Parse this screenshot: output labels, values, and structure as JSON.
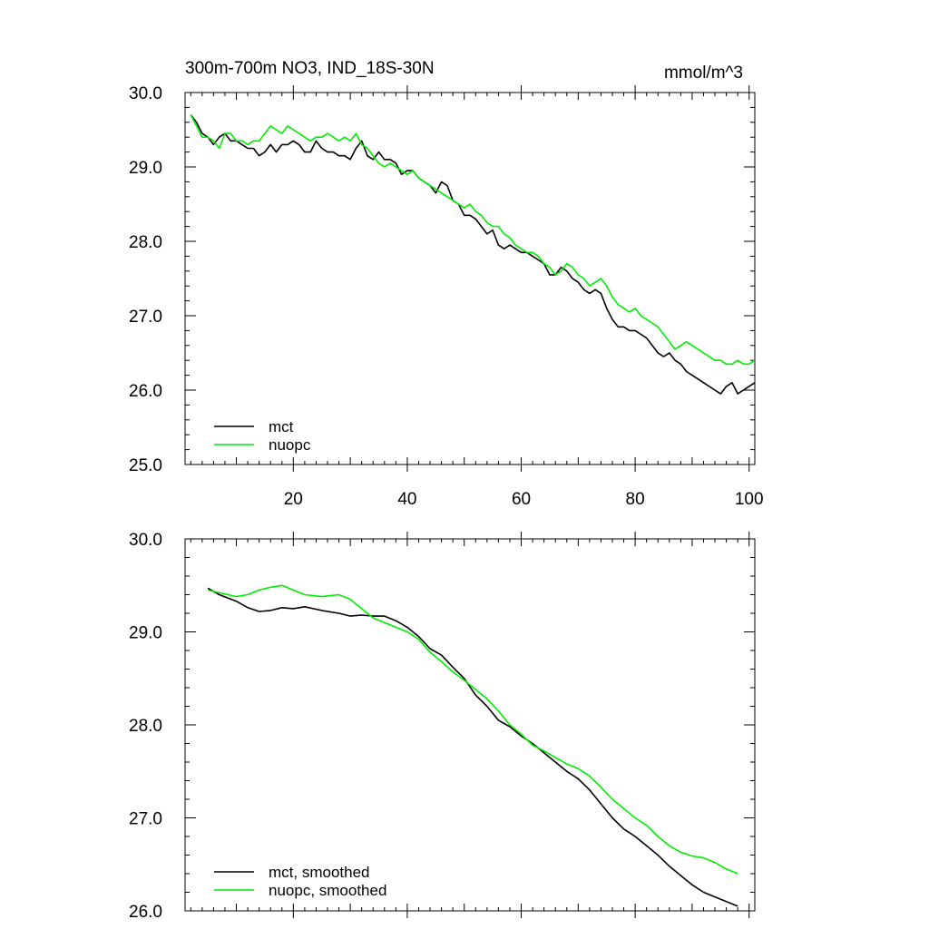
{
  "chart_data": [
    {
      "type": "line",
      "title": "300m-700m NO3, IND_18S-30N",
      "units": "mmol/m^3",
      "xlabel": "",
      "ylabel": "",
      "xlim": [
        1,
        101
      ],
      "ylim": [
        25.0,
        30.0
      ],
      "xticks": [
        20,
        40,
        60,
        80,
        100
      ],
      "yticks": [
        "25.0",
        "26.0",
        "27.0",
        "28.0",
        "29.0",
        "30.0"
      ],
      "legend_position": "bottom-left",
      "series": [
        {
          "name": "mct",
          "color": "#000000",
          "x_start": 2,
          "values": [
            29.7,
            29.6,
            29.45,
            29.4,
            29.3,
            29.4,
            29.45,
            29.35,
            29.35,
            29.3,
            29.25,
            29.25,
            29.15,
            29.2,
            29.3,
            29.2,
            29.3,
            29.3,
            29.35,
            29.3,
            29.2,
            29.2,
            29.35,
            29.25,
            29.2,
            29.2,
            29.15,
            29.15,
            29.1,
            29.25,
            29.35,
            29.15,
            29.1,
            29.2,
            29.1,
            29.1,
            29.05,
            28.9,
            28.95,
            28.95,
            28.85,
            28.8,
            28.75,
            28.65,
            28.8,
            28.75,
            28.55,
            28.5,
            28.35,
            28.35,
            28.3,
            28.2,
            28.1,
            28.15,
            27.95,
            27.9,
            27.95,
            27.9,
            27.85,
            27.85,
            27.8,
            27.75,
            27.7,
            27.55,
            27.55,
            27.65,
            27.6,
            27.5,
            27.45,
            27.35,
            27.3,
            27.35,
            27.3,
            27.1,
            26.95,
            26.85,
            26.85,
            26.8,
            26.8,
            26.75,
            26.7,
            26.6,
            26.5,
            26.45,
            26.5,
            26.4,
            26.35,
            26.25,
            26.2,
            26.15,
            26.1,
            26.05,
            26.0,
            25.95,
            26.05,
            26.1,
            25.95,
            26.0,
            26.05,
            26.1
          ]
        },
        {
          "name": "nuopc",
          "color": "#00ee00",
          "x_start": 2,
          "values": [
            29.7,
            29.55,
            29.4,
            29.4,
            29.35,
            29.25,
            29.45,
            29.45,
            29.35,
            29.35,
            29.3,
            29.35,
            29.35,
            29.45,
            29.55,
            29.5,
            29.45,
            29.55,
            29.5,
            29.45,
            29.4,
            29.35,
            29.4,
            29.4,
            29.45,
            29.4,
            29.35,
            29.4,
            29.35,
            29.45,
            29.3,
            29.25,
            29.15,
            29.05,
            29.0,
            29.05,
            29.0,
            28.95,
            28.9,
            28.95,
            28.85,
            28.8,
            28.75,
            28.7,
            28.65,
            28.6,
            28.55,
            28.5,
            28.45,
            28.5,
            28.4,
            28.35,
            28.25,
            28.2,
            28.2,
            28.1,
            28.05,
            27.95,
            27.9,
            27.85,
            27.85,
            27.8,
            27.7,
            27.65,
            27.55,
            27.6,
            27.7,
            27.65,
            27.55,
            27.5,
            27.4,
            27.45,
            27.5,
            27.4,
            27.25,
            27.15,
            27.1,
            27.05,
            27.1,
            27.0,
            26.95,
            26.9,
            26.85,
            26.75,
            26.65,
            26.55,
            26.6,
            26.65,
            26.6,
            26.55,
            26.5,
            26.45,
            26.4,
            26.4,
            26.35,
            26.35,
            26.4,
            26.35,
            26.35,
            26.4
          ]
        }
      ]
    },
    {
      "type": "line",
      "title": "",
      "xlabel": "",
      "ylabel": "",
      "xlim": [
        1,
        101
      ],
      "ylim": [
        26.0,
        30.0
      ],
      "yticks": [
        "26.0",
        "27.0",
        "28.0",
        "29.0",
        "30.0"
      ],
      "legend_position": "bottom-left",
      "series": [
        {
          "name": "mct, smoothed",
          "color": "#000000",
          "x": [
            5,
            7,
            10,
            12,
            14,
            16,
            18,
            20,
            22,
            25,
            28,
            30,
            32,
            34,
            36,
            38,
            40,
            42,
            44,
            46,
            48,
            50,
            52,
            54,
            56,
            58,
            60,
            62,
            64,
            66,
            68,
            70,
            72,
            74,
            76,
            78,
            80,
            82,
            84,
            86,
            88,
            90,
            92,
            94,
            96,
            98
          ],
          "values": [
            29.47,
            29.4,
            29.33,
            29.26,
            29.22,
            29.23,
            29.26,
            29.25,
            29.27,
            29.23,
            29.2,
            29.17,
            29.18,
            29.17,
            29.17,
            29.12,
            29.05,
            28.95,
            28.82,
            28.75,
            28.62,
            28.5,
            28.32,
            28.2,
            28.05,
            27.98,
            27.88,
            27.8,
            27.7,
            27.6,
            27.5,
            27.42,
            27.3,
            27.15,
            27.0,
            26.88,
            26.8,
            26.7,
            26.6,
            26.48,
            26.38,
            26.28,
            26.2,
            26.15,
            26.1,
            26.05
          ]
        },
        {
          "name": "nuopc, smoothed",
          "color": "#00ee00",
          "x": [
            5,
            7,
            10,
            12,
            14,
            16,
            18,
            20,
            22,
            25,
            28,
            30,
            32,
            34,
            36,
            38,
            40,
            42,
            44,
            46,
            48,
            50,
            52,
            54,
            56,
            58,
            60,
            62,
            64,
            66,
            68,
            70,
            72,
            74,
            76,
            78,
            80,
            82,
            84,
            86,
            88,
            90,
            92,
            94,
            96,
            98
          ],
          "values": [
            29.45,
            29.42,
            29.38,
            29.4,
            29.45,
            29.48,
            29.5,
            29.45,
            29.4,
            29.38,
            29.4,
            29.35,
            29.25,
            29.15,
            29.1,
            29.05,
            29.0,
            28.92,
            28.78,
            28.68,
            28.57,
            28.48,
            28.38,
            28.28,
            28.15,
            28.0,
            27.9,
            27.78,
            27.72,
            27.65,
            27.58,
            27.53,
            27.45,
            27.33,
            27.2,
            27.1,
            27.0,
            26.92,
            26.8,
            26.7,
            26.63,
            26.59,
            26.57,
            26.52,
            26.45,
            26.4
          ]
        }
      ]
    }
  ]
}
